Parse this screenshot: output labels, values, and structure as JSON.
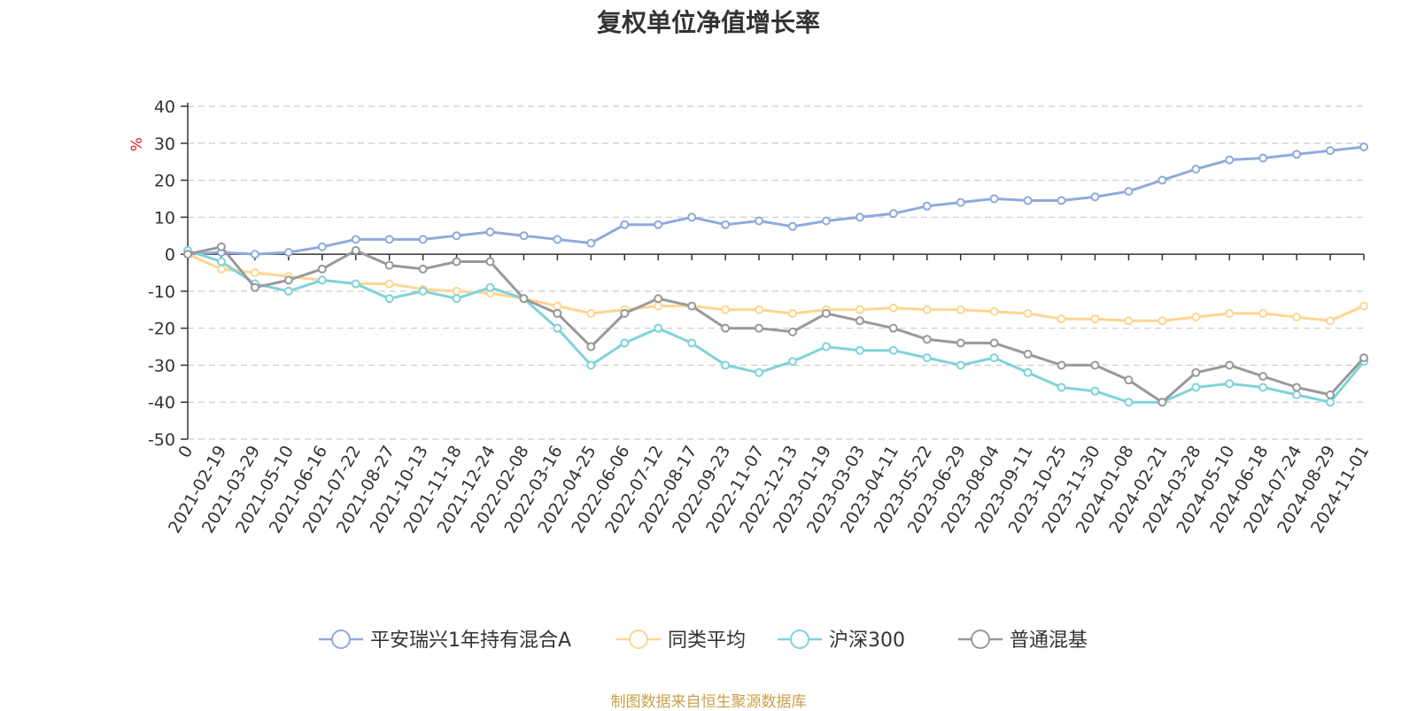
{
  "colors": {
    "series": [
      "#8faadc",
      "#ffd591",
      "#7fd3d8",
      "#999999"
    ],
    "axis": "#333333",
    "grid": "#cccccc",
    "unit": "#e02020",
    "source": "#c8a24a"
  },
  "chart_data": {
    "type": "line",
    "title": "复权单位净值增长率",
    "ylabel": "%",
    "ylim": [
      -50,
      40
    ],
    "yticks": [
      40,
      30,
      20,
      10,
      0,
      -10,
      -20,
      -30,
      -40,
      -50
    ],
    "grid": true,
    "legend": "bottom",
    "categories": [
      "0",
      "2021-02-19",
      "2021-03-29",
      "2021-05-10",
      "2021-06-16",
      "2021-07-22",
      "2021-08-27",
      "2021-10-13",
      "2021-11-18",
      "2021-12-24",
      "2022-02-08",
      "2022-03-16",
      "2022-04-25",
      "2022-06-06",
      "2022-07-12",
      "2022-08-17",
      "2022-09-23",
      "2022-11-07",
      "2022-12-13",
      "2023-01-19",
      "2023-03-03",
      "2023-04-11",
      "2023-05-22",
      "2023-06-29",
      "2023-08-04",
      "2023-09-11",
      "2023-10-25",
      "2023-11-30",
      "2024-01-08",
      "2024-02-21",
      "2024-03-28",
      "2024-05-10",
      "2024-06-18",
      "2024-07-24",
      "2024-08-29",
      "2024-11-01"
    ],
    "series": [
      {
        "name": "平安瑞兴1年持有混合A",
        "values": [
          0,
          0.5,
          0,
          0.5,
          2,
          4,
          4,
          4,
          5,
          6,
          5,
          4,
          3,
          8,
          8,
          10,
          8,
          9,
          7.5,
          9,
          10,
          11,
          13,
          14,
          15,
          14.5,
          14.5,
          15.5,
          17,
          20,
          23,
          25.5,
          26,
          27,
          28,
          29
        ]
      },
      {
        "name": "同类平均",
        "values": [
          0,
          -4,
          -5,
          -6,
          -7,
          -8,
          -8,
          -9.5,
          -10,
          -10.5,
          -12,
          -14,
          -16,
          -15,
          -14,
          -14,
          -15,
          -15,
          -16,
          -15,
          -15,
          -14.5,
          -15,
          -15,
          -15.5,
          -16,
          -17.5,
          -17.5,
          -18,
          -18,
          -17,
          -16,
          -16,
          -17,
          -18,
          -14
        ]
      },
      {
        "name": "沪深300",
        "values": [
          1,
          -2,
          -8,
          -10,
          -7,
          -8,
          -12,
          -10,
          -12,
          -9,
          -12,
          -20,
          -30,
          -24,
          -20,
          -24,
          -30,
          -32,
          -29,
          -25,
          -26,
          -26,
          -28,
          -30,
          -28,
          -32,
          -36,
          -37,
          -40,
          -40,
          -36,
          -35,
          -36,
          -38,
          -40,
          -29
        ]
      },
      {
        "name": "普通混基",
        "values": [
          0,
          2,
          -9,
          -7,
          -4,
          1,
          -3,
          -4,
          -2,
          -2,
          -12,
          -16,
          -25,
          -16,
          -12,
          -14,
          -20,
          -20,
          -21,
          -16,
          -18,
          -20,
          -23,
          -24,
          -24,
          -27,
          -30,
          -30,
          -34,
          -40,
          -32,
          -30,
          -33,
          -36,
          -38,
          -28
        ]
      }
    ]
  },
  "source_note": "制图数据来自恒生聚源数据库"
}
